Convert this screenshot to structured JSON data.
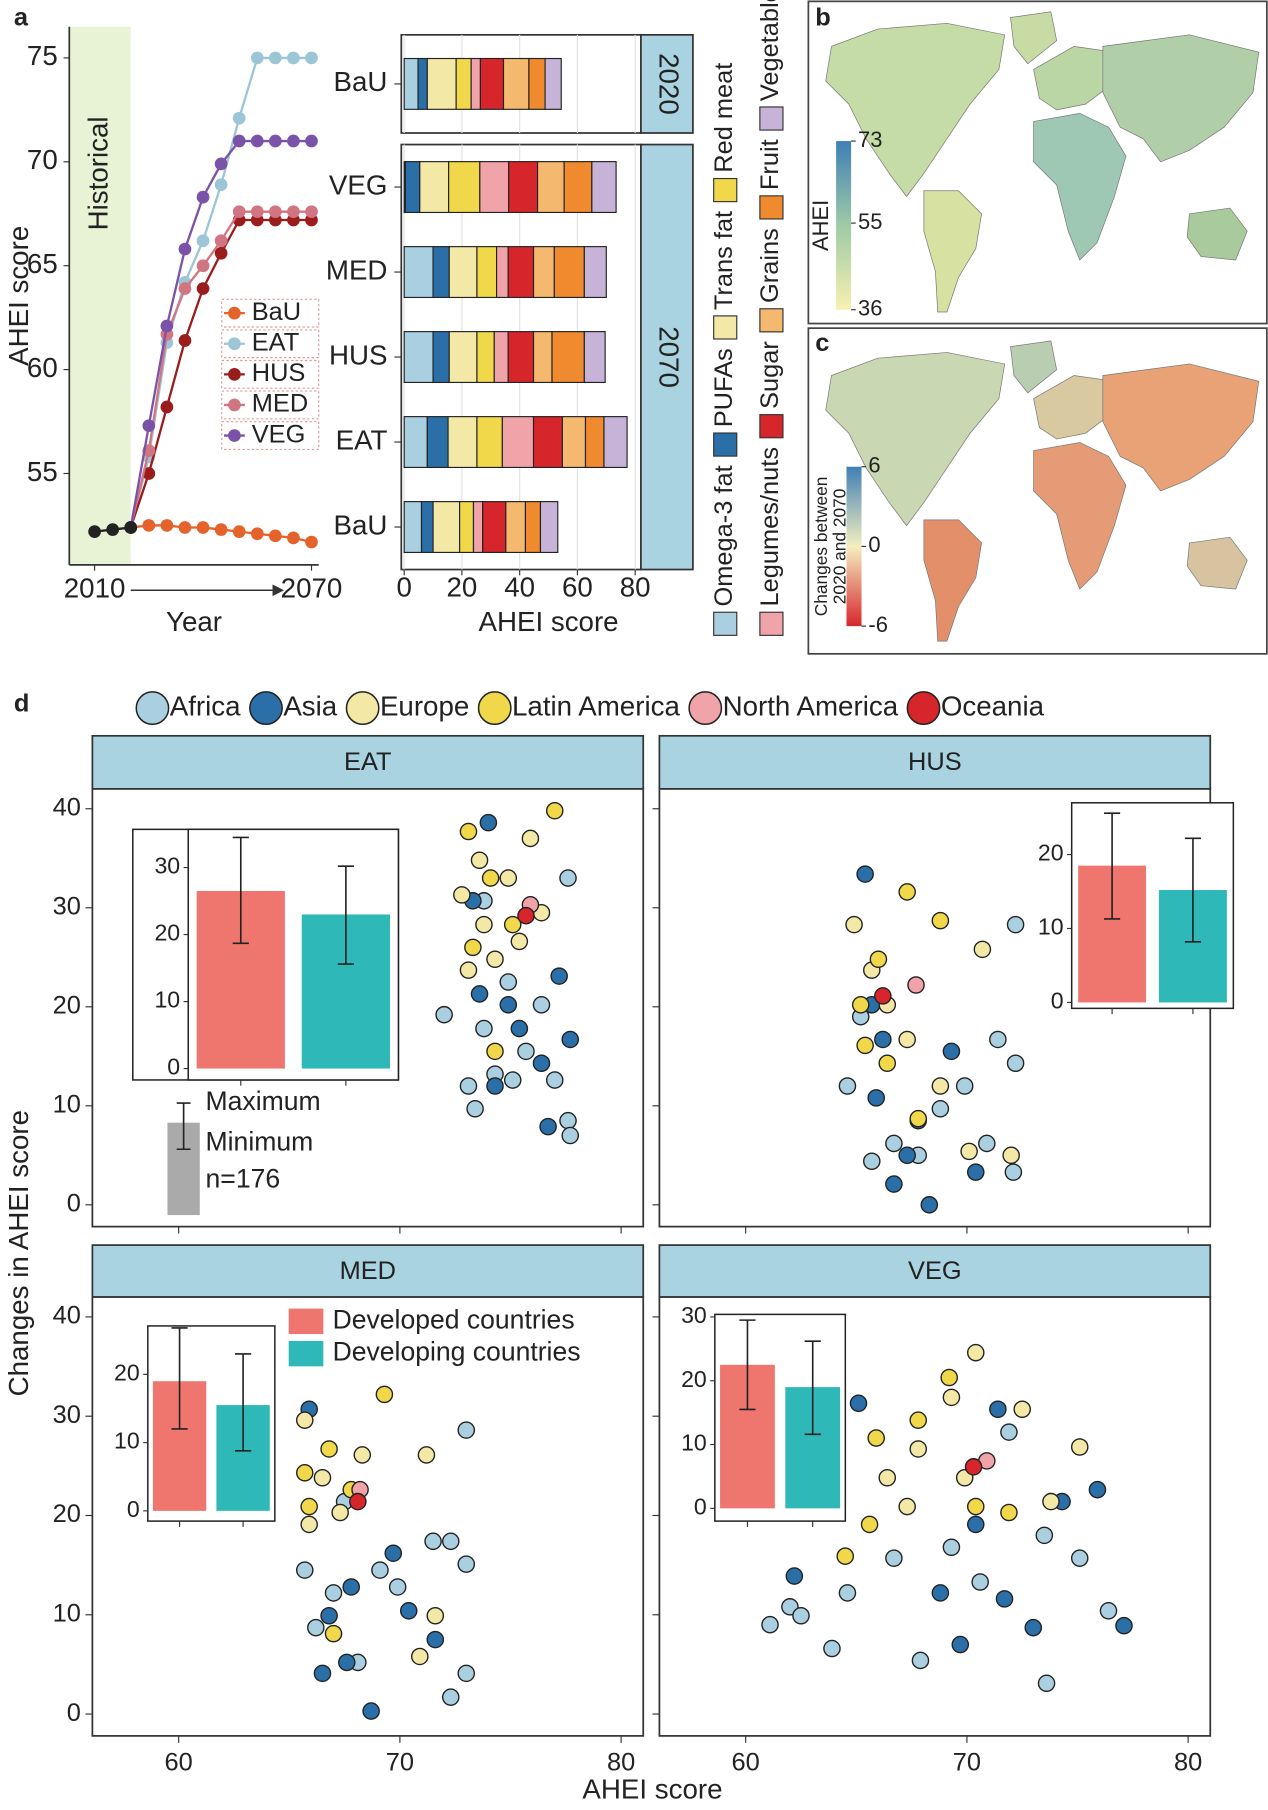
{
  "panel_labels": [
    "a",
    "b",
    "c",
    "d"
  ],
  "scatter_legend": [
    {
      "name": "Africa",
      "color": "#a9cfe0"
    },
    {
      "name": "Asia",
      "color": "#2a6fa8"
    },
    {
      "name": "Europe",
      "color": "#f3e8a6"
    },
    {
      "name": "Latin America",
      "color": "#f0d84a"
    },
    {
      "name": "North America",
      "color": "#f0a3a8"
    },
    {
      "name": "Oceania",
      "color": "#d7262b"
    }
  ],
  "scatter_axes": {
    "xlabel": "AHEI score",
    "ylabel": "Changes in AHEI score",
    "xlim": [
      56.1,
      81
    ],
    "xticks": [
      60,
      70,
      80
    ],
    "ylim": [
      -2.2,
      42
    ],
    "yticks": [
      0,
      10,
      20,
      30,
      40
    ]
  },
  "inset_groups": {
    "names": [
      "Developed countries",
      "Developing countries"
    ],
    "colors": [
      "#ee766f",
      "#2fb8b8"
    ]
  },
  "inset_key": {
    "labels": [
      "Maximum",
      "Minimum"
    ],
    "n": "n=176"
  },
  "chart_data": [
    {
      "type": "line",
      "xlabel": "Year",
      "ylabel": "AHEI score",
      "xlim": [
        2003,
        2072
      ],
      "xticks": [
        2010,
        2070
      ],
      "ylim": [
        50.6,
        76.5
      ],
      "yticks": [
        55,
        60,
        65,
        70,
        75
      ],
      "band": {
        "label": "Historical",
        "end": 2020,
        "color": "#e8f3d6"
      },
      "history": {
        "color": "#222222",
        "x": [
          2010,
          2015,
          2020
        ],
        "values": [
          52.2,
          52.3,
          52.4
        ]
      },
      "x": [
        2020,
        2025,
        2030,
        2035,
        2040,
        2045,
        2050,
        2055,
        2060,
        2065,
        2070
      ],
      "series": [
        {
          "name": "BaU",
          "color": "#e5622a",
          "values": [
            52.4,
            52.5,
            52.5,
            52.4,
            52.4,
            52.3,
            52.2,
            52.1,
            52.0,
            51.9,
            51.7
          ]
        },
        {
          "name": "EAT",
          "color": "#9cc5d6",
          "values": [
            52.4,
            55.8,
            61.3,
            64.2,
            66.2,
            68.9,
            72.1,
            75.0,
            75.0,
            75.0,
            75.0
          ]
        },
        {
          "name": "HUS",
          "color": "#9b1c1c",
          "values": [
            52.4,
            55.0,
            58.2,
            61.4,
            63.9,
            65.6,
            67.2,
            67.2,
            67.2,
            67.2,
            67.2
          ]
        },
        {
          "name": "MED",
          "color": "#d17582",
          "values": [
            52.4,
            56.1,
            61.7,
            63.9,
            65.0,
            66.2,
            67.6,
            67.6,
            67.6,
            67.6,
            67.6
          ]
        },
        {
          "name": "VEG",
          "color": "#7a52a8",
          "values": [
            52.4,
            57.3,
            62.1,
            65.8,
            68.3,
            69.9,
            71.0,
            71.0,
            71.0,
            71.0,
            71.0
          ]
        }
      ]
    },
    {
      "type": "stacked_barh",
      "xlabel": "AHEI score",
      "xlim": [
        -1,
        82
      ],
      "xticks": [
        0,
        20,
        40,
        60,
        80
      ],
      "series": [
        {
          "name": "Omega-3 fat",
          "color": "#a9cfe0"
        },
        {
          "name": "PUFAs",
          "color": "#2a6fa8"
        },
        {
          "name": "Trans fat",
          "color": "#f3e8a6"
        },
        {
          "name": "Red meat",
          "color": "#f0d84a"
        },
        {
          "name": "Legumes/nuts",
          "color": "#f0a3a8"
        },
        {
          "name": "Sugar",
          "color": "#d7262b"
        },
        {
          "name": "Grains",
          "color": "#f4b86e"
        },
        {
          "name": "Fruit",
          "color": "#ef8a2e"
        },
        {
          "name": "Vegetable",
          "color": "#c8b3d8"
        }
      ],
      "facets": [
        {
          "label": "2020",
          "categories": [
            "BaU"
          ],
          "values": [
            [
              4.8,
              3.2,
              10,
              5.2,
              3.2,
              8,
              8.8,
              5.6,
              5.6
            ]
          ]
        },
        {
          "label": "2070",
          "categories": [
            "VEG",
            "MED",
            "HUS",
            "EAT",
            "BaU"
          ],
          "values": [
            [
              0.4,
              5,
              10,
              10.8,
              10,
              10,
              9.2,
              9.6,
              8.4
            ],
            [
              10,
              5.6,
              9.6,
              6.8,
              4,
              8.8,
              7.2,
              10.4,
              7.6
            ],
            [
              10,
              5.6,
              9.6,
              6,
              4.8,
              8.8,
              6.4,
              11.2,
              7.2
            ],
            [
              8,
              7.2,
              10,
              8.8,
              10.8,
              10,
              8,
              6.4,
              8
            ],
            [
              6,
              4,
              9.2,
              4.8,
              3.2,
              8,
              6.8,
              5.2,
              6
            ]
          ]
        }
      ]
    },
    {
      "type": "map",
      "colorbar": {
        "label": [
          "AHEI"
        ],
        "lim": [
          36,
          73
        ],
        "ticks": [
          73,
          55,
          36
        ],
        "colors": [
          "#3f7fb5",
          "#9ecaa6",
          "#f7f1b0"
        ]
      }
    },
    {
      "type": "map",
      "colorbar": {
        "label": [
          "Changes between",
          "2020 and 2070"
        ],
        "lim": [
          -6,
          6
        ],
        "ticks": [
          6,
          0,
          -6
        ],
        "colors": [
          "#3f7fb5",
          "#f4efc0",
          "#d7262b"
        ]
      }
    },
    {
      "type": "scatter",
      "title": "EAT",
      "series": [
        {
          "x": [
            72.0,
            73.1,
            73.8,
            74.3,
            74.9,
            75.7,
            76.4,
            77.0,
            77.6,
            77.7,
            77.6,
            73.4,
            73.8,
            75.1
          ],
          "values": [
            19.2,
            12.0,
            17.8,
            13.2,
            22.5,
            15.5,
            20.2,
            12.6,
            8.5,
            7.0,
            33.0,
            9.7,
            30.7,
            12.6
          ]
        },
        {
          "x": [
            74.0,
            73.3,
            74.3,
            75.4,
            76.4,
            77.2,
            76.7,
            77.7,
            74.9,
            73.6
          ],
          "values": [
            38.6,
            30.7,
            12.0,
            17.8,
            14.3,
            23.1,
            7.9,
            16.7,
            20.2,
            21.3
          ]
        },
        {
          "x": [
            72.8,
            73.8,
            74.9,
            74.3,
            75.9,
            75.4,
            73.1,
            76.4,
            73.6
          ],
          "values": [
            31.3,
            28.3,
            33.0,
            24.8,
            37.0,
            26.6,
            23.7,
            29.5,
            34.8
          ]
        },
        {
          "x": [
            73.1,
            77.0,
            73.3,
            74.1,
            74.3,
            75.1
          ],
          "values": [
            37.7,
            39.8,
            26.0,
            33.0,
            15.5,
            28.3
          ]
        },
        {
          "x": [
            75.9
          ],
          "values": [
            30.3
          ]
        },
        {
          "x": [
            75.7
          ],
          "values": [
            29.2
          ]
        }
      ],
      "inset": {
        "ylim": [
          -1.7,
          35.7
        ],
        "yticks": [
          0,
          10,
          20,
          30
        ],
        "values": [
          26.5,
          23.0
        ],
        "min": [
          18.7,
          15.6
        ],
        "max": [
          34.5,
          30.2
        ]
      }
    },
    {
      "type": "scatter",
      "title": "HUS",
      "series": [
        {
          "x": [
            64.6,
            65.2,
            65.7,
            66.7,
            67.8,
            68.8,
            69.9,
            71.4,
            72.2,
            72.2,
            72.1,
            70.9
          ],
          "values": [
            12.0,
            19.0,
            4.4,
            6.2,
            5.0,
            9.7,
            12.0,
            16.7,
            14.3,
            28.3,
            3.3,
            6.2
          ]
        },
        {
          "x": [
            65.4,
            65.9,
            66.7,
            67.8,
            68.3,
            69.3,
            70.4,
            66.2,
            67.3,
            65.7
          ],
          "values": [
            33.4,
            10.8,
            2.1,
            8.5,
            0,
            15.5,
            3.3,
            16.7,
            5.0,
            20.2
          ]
        },
        {
          "x": [
            64.9,
            65.7,
            66.4,
            67.3,
            68.8,
            70.7,
            72.0,
            70.1
          ],
          "values": [
            28.3,
            23.7,
            20.2,
            16.7,
            12.0,
            25.8,
            5.0,
            5.4
          ]
        },
        {
          "x": [
            65.2,
            66.0,
            67.3,
            68.8,
            66.4,
            67.8,
            65.4
          ],
          "values": [
            20.2,
            24.8,
            31.6,
            28.7,
            14.3,
            8.7,
            16.1
          ]
        },
        {
          "x": [
            67.7
          ],
          "values": [
            22.2
          ]
        },
        {
          "x": [
            66.2
          ],
          "values": [
            21.1
          ]
        }
      ],
      "inset": {
        "ylim": [
          -0.8,
          27
        ],
        "yticks": [
          0,
          10,
          20
        ],
        "values": [
          18.5,
          15.2
        ],
        "min": [
          11.3,
          8.2
        ],
        "max": [
          25.6,
          22.2
        ]
      }
    },
    {
      "type": "scatter",
      "title": "MED",
      "series": [
        {
          "x": [
            65.7,
            66.2,
            67.0,
            68.1,
            69.1,
            69.9,
            71.5,
            72.3,
            73.0,
            73.0,
            72.3,
            67.5,
            73.0
          ],
          "values": [
            14.5,
            8.7,
            12.2,
            5.2,
            14.5,
            12.8,
            17.4,
            17.4,
            15.1,
            4.1,
            1.7,
            21.4,
            28.6
          ]
        },
        {
          "x": [
            65.9,
            66.8,
            67.6,
            68.7,
            69.7,
            70.4,
            71.6,
            67.8,
            66.5
          ],
          "values": [
            30.7,
            9.9,
            5.2,
            0.3,
            16.2,
            10.4,
            7.5,
            12.8,
            4.1
          ]
        },
        {
          "x": [
            65.7,
            66.5,
            67.3,
            68.3,
            71.2,
            71.6,
            65.9,
            70.9
          ],
          "values": [
            29.6,
            23.8,
            20.3,
            26.1,
            26.1,
            9.9,
            19.1,
            5.8
          ]
        },
        {
          "x": [
            65.7,
            65.9,
            66.8,
            69.3,
            67.0,
            67.8
          ],
          "values": [
            24.3,
            20.9,
            26.7,
            32.2,
            8.1,
            22.6
          ]
        },
        {
          "x": [
            68.2
          ],
          "values": [
            22.6
          ]
        },
        {
          "x": [
            68.1
          ],
          "values": [
            21.4
          ]
        }
      ],
      "inset": {
        "ylim": [
          -1.5,
          27.1
        ],
        "yticks": [
          0,
          10,
          20
        ],
        "values": [
          19.0,
          15.5
        ],
        "min": [
          12.0,
          8.8
        ],
        "max": [
          26.8,
          23.0
        ]
      }
    },
    {
      "type": "scatter",
      "title": "VEG",
      "series": [
        {
          "x": [
            61.1,
            62.0,
            63.9,
            64.6,
            66.7,
            67.9,
            69.3,
            70.6,
            71.9,
            73.5,
            75.1,
            76.4,
            73.6,
            62.5
          ],
          "values": [
            9.0,
            10.8,
            6.6,
            12.2,
            15.7,
            5.4,
            16.8,
            13.3,
            28.4,
            18.0,
            15.7,
            10.4,
            3.1,
            9.9
          ]
        },
        {
          "x": [
            65.1,
            62.2,
            68.8,
            70.4,
            71.7,
            73.0,
            74.3,
            75.9,
            77.1,
            71.4,
            69.7
          ],
          "values": [
            31.3,
            13.9,
            12.2,
            19.1,
            11.6,
            8.7,
            21.4,
            22.6,
            8.9,
            30.7,
            7.0
          ]
        },
        {
          "x": [
            66.4,
            67.8,
            69.3,
            70.4,
            72.5,
            75.1,
            67.3,
            69.9,
            73.8
          ],
          "values": [
            23.8,
            26.7,
            31.9,
            36.4,
            30.7,
            26.9,
            20.9,
            23.8,
            21.4
          ]
        },
        {
          "x": [
            65.9,
            67.8,
            69.2,
            65.6,
            70.4,
            71.9,
            64.5
          ],
          "values": [
            27.8,
            29.6,
            33.9,
            19.1,
            20.9,
            20.3,
            15.9
          ]
        },
        {
          "x": [
            70.9
          ],
          "values": [
            25.5
          ]
        },
        {
          "x": [
            70.3
          ],
          "values": [
            24.9
          ]
        }
      ],
      "inset": {
        "ylim": [
          -2.0,
          30.4
        ],
        "yticks": [
          0,
          10,
          20,
          30
        ],
        "values": [
          22.5,
          19.0
        ],
        "min": [
          15.5,
          11.6
        ],
        "max": [
          29.5,
          26.2
        ]
      }
    }
  ]
}
